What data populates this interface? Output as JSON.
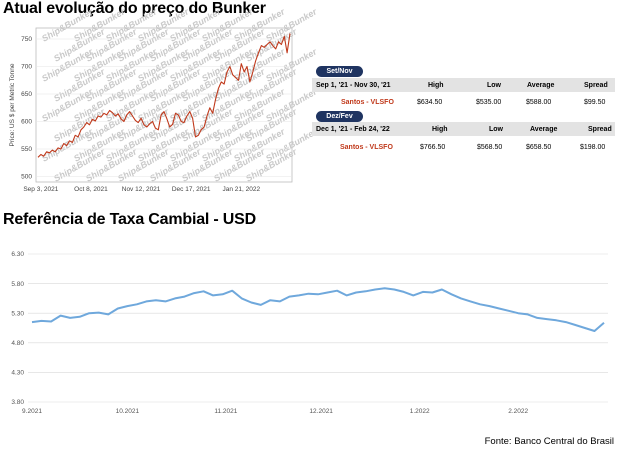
{
  "title1": "Atual evolução do preço do Bunker",
  "title2": "Referência de Taxa Cambial - USD",
  "source": "Fonte: Banco Central do Brasil",
  "watermark": "Ship&Bunker",
  "table": {
    "headers": [
      "High",
      "Low",
      "Average",
      "Spread"
    ],
    "blocks": [
      {
        "tag": "Set/Nov",
        "period": "Sep 1, '21 - Nov 30, '21",
        "port": "Santos - VLSFO",
        "high": "$634.50",
        "low": "$535.00",
        "average": "$588.00",
        "spread": "$99.50"
      },
      {
        "tag": "Dez/Fev",
        "period": "Dec 1, '21 - Feb 24, '22",
        "port": "Santos - VLSFO",
        "high": "$766.50",
        "low": "$568.50",
        "average": "$658.50",
        "spread": "$198.00"
      }
    ]
  },
  "chart_data": [
    {
      "type": "line",
      "title": "Atual evolução do preço do Bunker",
      "ylabel": "Price: US $ per Metric Tonne",
      "ylim": [
        490,
        770
      ],
      "yticks": [
        500,
        550,
        600,
        650,
        700,
        750
      ],
      "xticks": [
        "Sep 3, 2021",
        "Oct 8, 2021",
        "Nov 12, 2021",
        "Dec 17, 2021",
        "Jan 21, 2022"
      ],
      "colors": {
        "line": "#c0391b"
      },
      "series": [
        {
          "x": [
            "2021-09-01",
            "2021-09-03",
            "2021-09-05",
            "2021-09-07",
            "2021-09-09",
            "2021-09-11",
            "2021-09-13",
            "2021-09-15",
            "2021-09-17",
            "2021-09-19",
            "2021-09-21",
            "2021-09-23",
            "2021-09-25",
            "2021-09-27",
            "2021-09-29",
            "2021-10-01",
            "2021-10-03",
            "2021-10-05",
            "2021-10-07",
            "2021-10-09",
            "2021-10-11",
            "2021-10-13",
            "2021-10-15",
            "2021-10-17",
            "2021-10-19",
            "2021-10-21",
            "2021-10-23",
            "2021-10-25",
            "2021-10-27",
            "2021-10-29",
            "2021-10-31",
            "2021-11-02",
            "2021-11-04",
            "2021-11-06",
            "2021-11-08",
            "2021-11-10",
            "2021-11-12",
            "2021-11-14",
            "2021-11-16",
            "2021-11-18",
            "2021-11-20",
            "2021-11-22",
            "2021-11-24",
            "2021-11-26",
            "2021-11-28",
            "2021-11-30",
            "2021-12-02",
            "2021-12-04",
            "2021-12-06",
            "2021-12-08",
            "2021-12-10",
            "2021-12-12",
            "2021-12-14",
            "2021-12-16",
            "2021-12-18",
            "2021-12-20",
            "2021-12-22",
            "2021-12-24",
            "2021-12-26",
            "2021-12-28",
            "2021-12-30",
            "2022-01-01",
            "2022-01-03",
            "2022-01-05",
            "2022-01-07",
            "2022-01-09",
            "2022-01-11",
            "2022-01-13",
            "2022-01-15",
            "2022-01-17",
            "2022-01-19",
            "2022-01-21",
            "2022-01-23",
            "2022-01-25",
            "2022-01-27",
            "2022-01-29",
            "2022-01-31",
            "2022-02-02",
            "2022-02-04",
            "2022-02-06",
            "2022-02-08",
            "2022-02-10",
            "2022-02-12",
            "2022-02-14",
            "2022-02-16",
            "2022-02-18",
            "2022-02-20",
            "2022-02-22",
            "2022-02-24"
          ],
          "values": [
            535,
            540,
            537,
            545,
            543,
            548,
            545,
            552,
            550,
            560,
            556,
            565,
            562,
            575,
            572,
            585,
            590,
            598,
            594,
            604,
            601,
            610,
            608,
            615,
            612,
            620,
            616,
            610,
            614,
            605,
            600,
            612,
            618,
            610,
            602,
            598,
            606,
            594,
            590,
            596,
            600,
            588,
            585,
            612,
            618,
            605,
            590,
            595,
            615,
            612,
            600,
            598,
            610,
            618,
            606,
            572,
            575,
            585,
            590,
            610,
            625,
            615,
            640,
            660,
            672,
            668,
            690,
            700,
            685,
            680,
            675,
            705,
            690,
            700,
            672,
            690,
            710,
            725,
            738,
            735,
            740,
            745,
            738,
            732,
            745,
            740,
            755,
            725,
            760
          ]
        }
      ]
    },
    {
      "type": "line",
      "title": "Referência de Taxa Cambial - USD",
      "ylim": [
        3.8,
        6.3
      ],
      "yticks": [
        3.8,
        4.3,
        4.8,
        5.3,
        5.8,
        6.3
      ],
      "xticks": [
        "9.2021",
        "10.2021",
        "11.2021",
        "12.2021",
        "1.2022",
        "2.2022"
      ],
      "colors": {
        "line": "#6fa8dc"
      },
      "series": [
        {
          "x": [
            "2021-09-01",
            "2021-09-04",
            "2021-09-07",
            "2021-09-10",
            "2021-09-13",
            "2021-09-16",
            "2021-09-19",
            "2021-09-22",
            "2021-09-25",
            "2021-09-28",
            "2021-10-01",
            "2021-10-04",
            "2021-10-07",
            "2021-10-10",
            "2021-10-13",
            "2021-10-16",
            "2021-10-19",
            "2021-10-22",
            "2021-10-25",
            "2021-10-28",
            "2021-10-31",
            "2021-11-03",
            "2021-11-06",
            "2021-11-09",
            "2021-11-12",
            "2021-11-15",
            "2021-11-18",
            "2021-11-21",
            "2021-11-24",
            "2021-11-27",
            "2021-11-30",
            "2021-12-03",
            "2021-12-06",
            "2021-12-09",
            "2021-12-12",
            "2021-12-15",
            "2021-12-18",
            "2021-12-21",
            "2021-12-24",
            "2021-12-27",
            "2021-12-30",
            "2022-01-02",
            "2022-01-05",
            "2022-01-08",
            "2022-01-11",
            "2022-01-14",
            "2022-01-17",
            "2022-01-20",
            "2022-01-23",
            "2022-01-26",
            "2022-01-29",
            "2022-02-01",
            "2022-02-04",
            "2022-02-07",
            "2022-02-10",
            "2022-02-13",
            "2022-02-16",
            "2022-02-19",
            "2022-02-22",
            "2022-02-25",
            "2022-02-28"
          ],
          "values": [
            5.15,
            5.17,
            5.16,
            5.26,
            5.22,
            5.24,
            5.3,
            5.31,
            5.28,
            5.38,
            5.42,
            5.45,
            5.5,
            5.52,
            5.5,
            5.55,
            5.58,
            5.64,
            5.67,
            5.6,
            5.62,
            5.68,
            5.55,
            5.48,
            5.44,
            5.52,
            5.5,
            5.58,
            5.6,
            5.63,
            5.62,
            5.65,
            5.68,
            5.6,
            5.65,
            5.67,
            5.7,
            5.72,
            5.7,
            5.66,
            5.6,
            5.66,
            5.65,
            5.7,
            5.62,
            5.55,
            5.5,
            5.45,
            5.42,
            5.38,
            5.34,
            5.3,
            5.28,
            5.22,
            5.2,
            5.18,
            5.15,
            5.1,
            5.05,
            5.0,
            5.14
          ]
        }
      ]
    }
  ]
}
